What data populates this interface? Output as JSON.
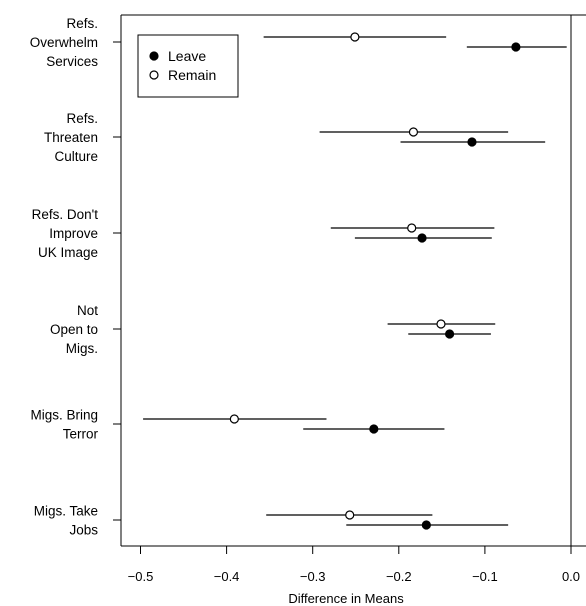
{
  "chart_data": {
    "type": "scatter",
    "subtype": "dot-plot-with-confidence-intervals",
    "title": "",
    "xlabel": "Difference in Means",
    "ylabel": "",
    "xlim": [
      -0.52,
      0.0
    ],
    "x_ticks": [
      -0.5,
      -0.4,
      -0.3,
      -0.2,
      -0.1,
      0.0
    ],
    "x_tick_labels": [
      "−0.5",
      "−0.4",
      "−0.3",
      "−0.2",
      "−0.1",
      "0.0"
    ],
    "reference_line": 0.0,
    "grid": false,
    "legend_position": "top-left",
    "categories": [
      {
        "label_lines": [
          "Refs.",
          "Overwhelm",
          "Services"
        ]
      },
      {
        "label_lines": [
          "Refs.",
          "Threaten",
          "Culture"
        ]
      },
      {
        "label_lines": [
          "Refs. Don't",
          "Improve",
          "UK Image"
        ]
      },
      {
        "label_lines": [
          "Not",
          "Open to",
          "Migs."
        ]
      },
      {
        "label_lines": [
          "Migs. Bring",
          "Terror"
        ]
      },
      {
        "label_lines": [
          "Migs. Take",
          "Jobs"
        ]
      }
    ],
    "series": [
      {
        "name": "Leave",
        "marker": "filled-circle",
        "points": [
          {
            "estimate": -0.064,
            "lower": -0.121,
            "upper": -0.005
          },
          {
            "estimate": -0.115,
            "lower": -0.198,
            "upper": -0.03
          },
          {
            "estimate": -0.173,
            "lower": -0.251,
            "upper": -0.092
          },
          {
            "estimate": -0.141,
            "lower": -0.189,
            "upper": -0.093
          },
          {
            "estimate": -0.229,
            "lower": -0.311,
            "upper": -0.147
          },
          {
            "estimate": -0.168,
            "lower": -0.261,
            "upper": -0.073
          }
        ]
      },
      {
        "name": "Remain",
        "marker": "open-circle",
        "points": [
          {
            "estimate": -0.251,
            "lower": -0.357,
            "upper": -0.145
          },
          {
            "estimate": -0.183,
            "lower": -0.292,
            "upper": -0.073
          },
          {
            "estimate": -0.185,
            "lower": -0.279,
            "upper": -0.089
          },
          {
            "estimate": -0.151,
            "lower": -0.213,
            "upper": -0.088
          },
          {
            "estimate": -0.391,
            "lower": -0.497,
            "upper": -0.284
          },
          {
            "estimate": -0.257,
            "lower": -0.354,
            "upper": -0.161
          }
        ]
      }
    ]
  }
}
